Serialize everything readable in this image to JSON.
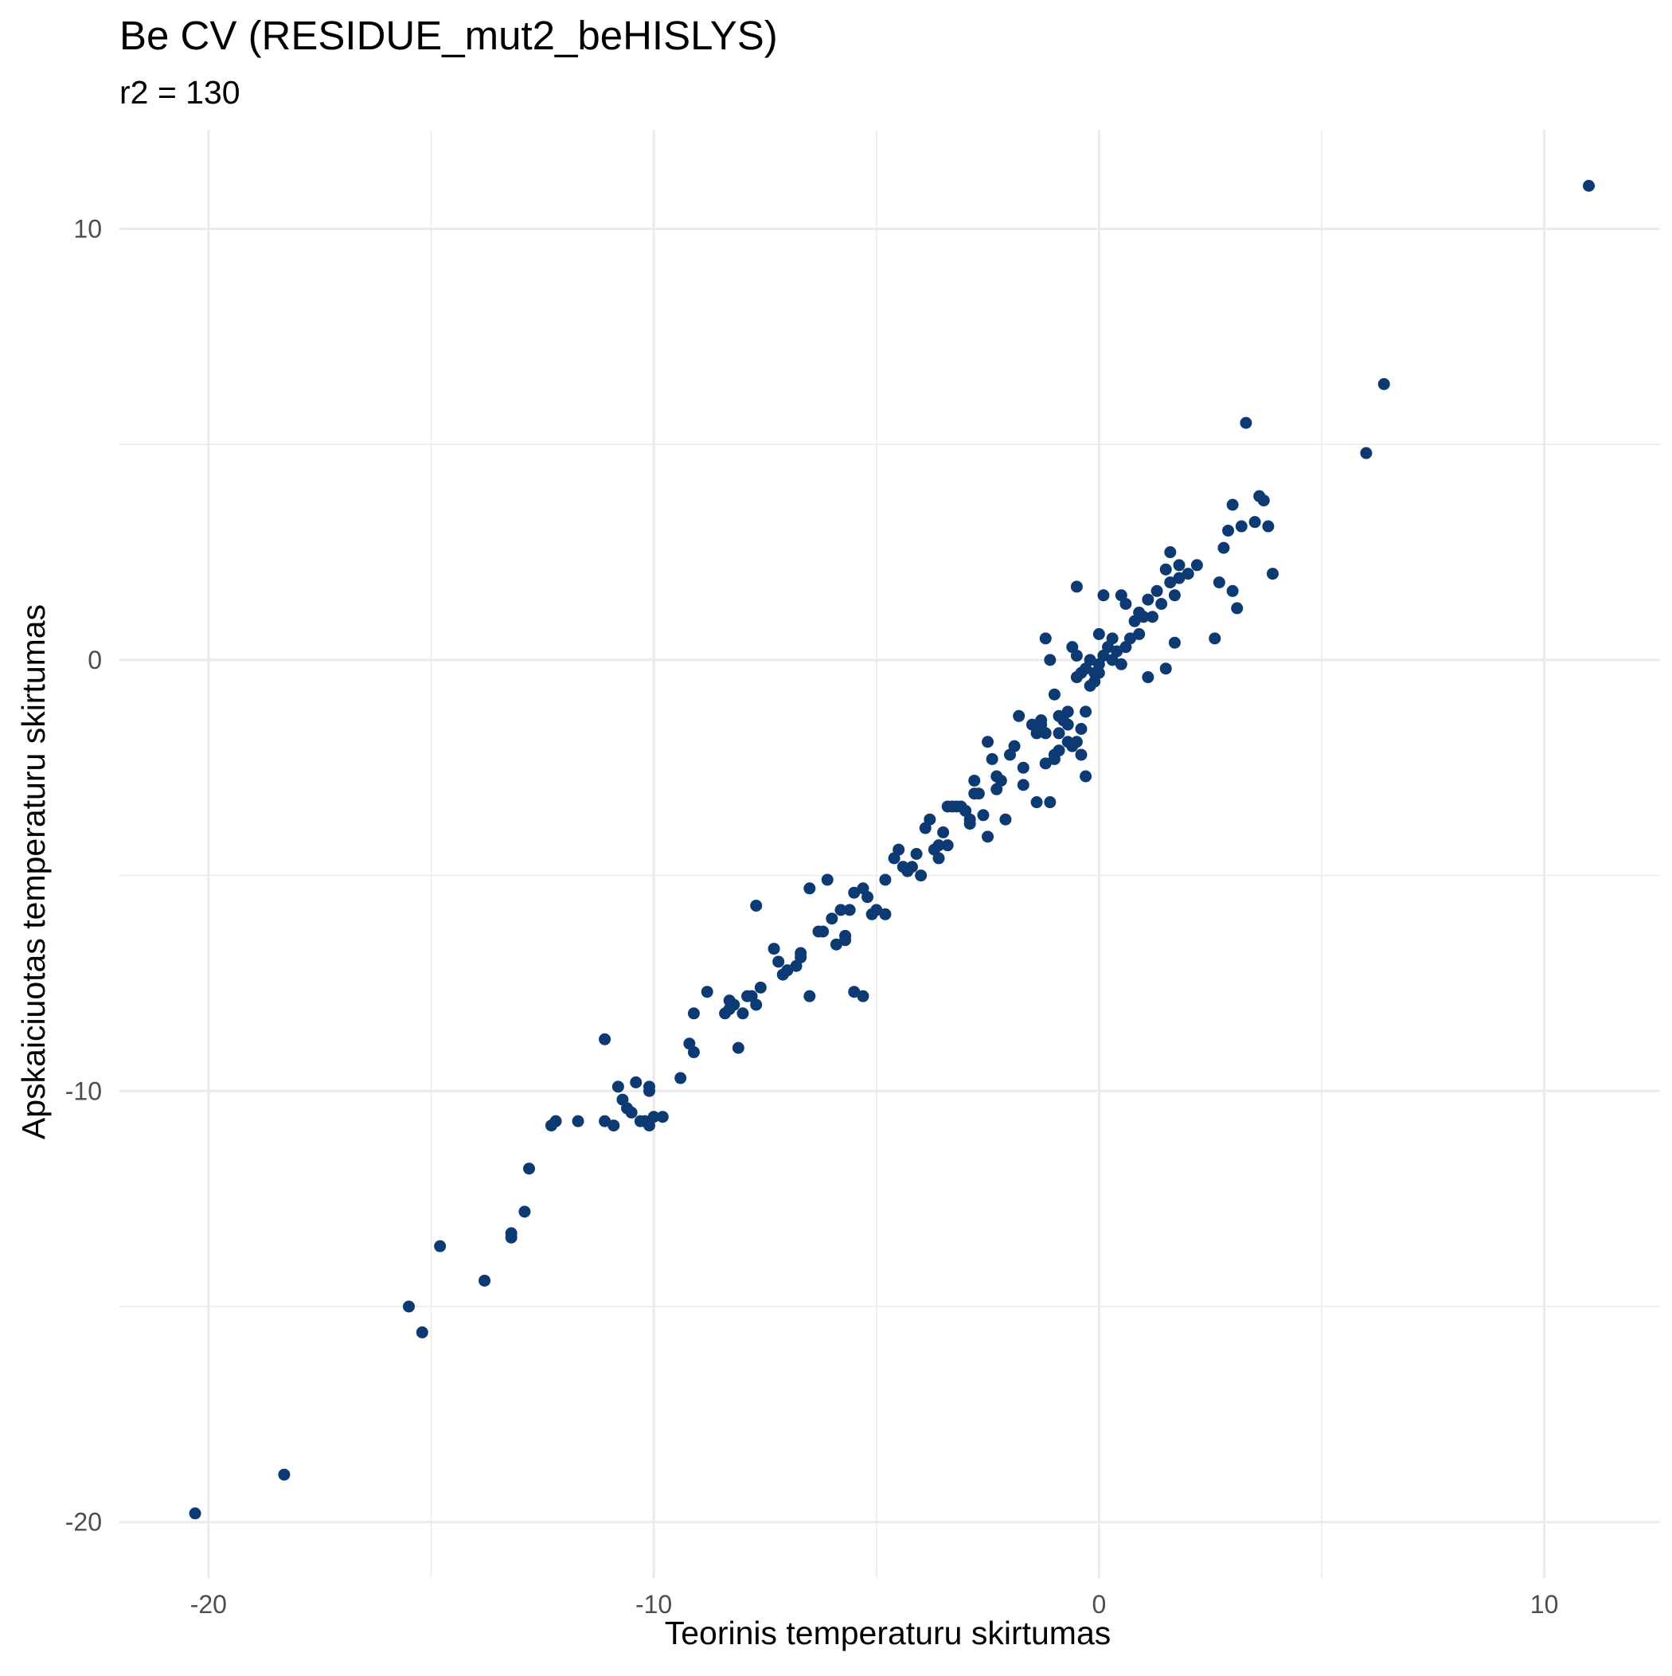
{
  "chart_data": {
    "type": "scatter",
    "title": "Be CV (RESIDUE_mut2_beHISLYS)",
    "subtitle": "r2 = 130",
    "xlabel": "Teorinis temperaturu skirtumas",
    "ylabel": "Apskaiciuotas temperaturu skirtumas",
    "xlim": [
      -22,
      12.6
    ],
    "ylim": [
      -21.3,
      12.3
    ],
    "x_ticks": [
      -20,
      -10,
      0,
      10
    ],
    "y_ticks": [
      -20,
      -10,
      0,
      10
    ],
    "x_tick_labels": [
      "-20",
      "-10",
      "0",
      "10"
    ],
    "y_tick_labels": [
      "-20",
      "-10",
      "0",
      "10"
    ],
    "grid": true,
    "legend": "none",
    "point_color": "#0e3a74",
    "points": [
      [
        -20.3,
        -19.8
      ],
      [
        -18.3,
        -18.9
      ],
      [
        -15.5,
        -15.0
      ],
      [
        -15.2,
        -15.6
      ],
      [
        -14.8,
        -13.6
      ],
      [
        -13.8,
        -14.4
      ],
      [
        -13.2,
        -13.3
      ],
      [
        -13.2,
        -13.4
      ],
      [
        -12.9,
        -12.8
      ],
      [
        -12.8,
        -11.8
      ],
      [
        -12.3,
        -10.8
      ],
      [
        -12.2,
        -10.7
      ],
      [
        -11.7,
        -10.7
      ],
      [
        -11.1,
        -8.8
      ],
      [
        -11.1,
        -10.7
      ],
      [
        -10.9,
        -10.8
      ],
      [
        -10.8,
        -9.9
      ],
      [
        -10.7,
        -10.2
      ],
      [
        -10.6,
        -10.4
      ],
      [
        -10.5,
        -10.5
      ],
      [
        -10.4,
        -9.8
      ],
      [
        -10.3,
        -10.7
      ],
      [
        -10.2,
        -10.7
      ],
      [
        -10.1,
        -10.8
      ],
      [
        -10.1,
        -9.9
      ],
      [
        -10.1,
        -10.0
      ],
      [
        -10.0,
        -10.6
      ],
      [
        -9.8,
        -10.6
      ],
      [
        -9.4,
        -9.7
      ],
      [
        -9.2,
        -8.9
      ],
      [
        -9.1,
        -9.1
      ],
      [
        -9.1,
        -8.2
      ],
      [
        -8.8,
        -7.7
      ],
      [
        -8.4,
        -8.2
      ],
      [
        -8.3,
        -8.1
      ],
      [
        -8.3,
        -7.9
      ],
      [
        -8.2,
        -8.0
      ],
      [
        -8.1,
        -9.0
      ],
      [
        -8.0,
        -8.2
      ],
      [
        -7.9,
        -7.8
      ],
      [
        -7.8,
        -7.8
      ],
      [
        -7.7,
        -8.0
      ],
      [
        -7.7,
        -5.7
      ],
      [
        -7.6,
        -7.6
      ],
      [
        -7.3,
        -6.7
      ],
      [
        -7.2,
        -7.0
      ],
      [
        -7.1,
        -7.3
      ],
      [
        -7.0,
        -7.2
      ],
      [
        -6.8,
        -7.1
      ],
      [
        -6.7,
        -6.8
      ],
      [
        -6.7,
        -6.9
      ],
      [
        -6.5,
        -5.3
      ],
      [
        -6.5,
        -7.8
      ],
      [
        -6.3,
        -6.3
      ],
      [
        -6.2,
        -6.3
      ],
      [
        -6.1,
        -5.1
      ],
      [
        -6.0,
        -6.0
      ],
      [
        -5.9,
        -6.6
      ],
      [
        -5.8,
        -5.8
      ],
      [
        -5.7,
        -6.4
      ],
      [
        -5.7,
        -6.5
      ],
      [
        -5.6,
        -5.8
      ],
      [
        -5.5,
        -5.4
      ],
      [
        -5.5,
        -7.7
      ],
      [
        -5.3,
        -5.3
      ],
      [
        -5.3,
        -7.8
      ],
      [
        -5.2,
        -5.5
      ],
      [
        -5.1,
        -5.9
      ],
      [
        -5.0,
        -5.8
      ],
      [
        -4.8,
        -5.9
      ],
      [
        -4.8,
        -5.1
      ],
      [
        -4.6,
        -4.6
      ],
      [
        -4.4,
        -4.8
      ],
      [
        -4.5,
        -4.4
      ],
      [
        -4.3,
        -4.9
      ],
      [
        -4.2,
        -4.8
      ],
      [
        -4.1,
        -4.5
      ],
      [
        -4.0,
        -5.0
      ],
      [
        -3.9,
        -3.9
      ],
      [
        -3.8,
        -3.7
      ],
      [
        -3.7,
        -4.4
      ],
      [
        -3.6,
        -4.6
      ],
      [
        -3.6,
        -4.3
      ],
      [
        -3.5,
        -4.0
      ],
      [
        -3.4,
        -3.4
      ],
      [
        -3.4,
        -4.3
      ],
      [
        -3.3,
        -3.4
      ],
      [
        -3.2,
        -3.4
      ],
      [
        -3.1,
        -3.4
      ],
      [
        -3.0,
        -3.5
      ],
      [
        -3.0,
        -3.5
      ],
      [
        -2.9,
        -3.7
      ],
      [
        -2.9,
        -3.8
      ],
      [
        -2.8,
        -2.8
      ],
      [
        -2.8,
        -3.1
      ],
      [
        -2.7,
        -3.1
      ],
      [
        -2.6,
        -3.6
      ],
      [
        -2.5,
        -4.1
      ],
      [
        -2.5,
        -1.9
      ],
      [
        -2.4,
        -2.3
      ],
      [
        -2.3,
        -3.0
      ],
      [
        -2.3,
        -2.7
      ],
      [
        -2.2,
        -2.8
      ],
      [
        -2.1,
        -3.7
      ],
      [
        -2.0,
        -2.2
      ],
      [
        -1.9,
        -2.0
      ],
      [
        -1.8,
        -1.3
      ],
      [
        -1.7,
        -2.5
      ],
      [
        -1.7,
        -2.9
      ],
      [
        -1.5,
        -1.5
      ],
      [
        -1.4,
        -3.3
      ],
      [
        -1.4,
        -1.7
      ],
      [
        -1.3,
        -1.5
      ],
      [
        -1.3,
        -1.4
      ],
      [
        -1.2,
        -2.4
      ],
      [
        -1.2,
        -1.7
      ],
      [
        -1.1,
        -3.3
      ],
      [
        -1.0,
        -2.2
      ],
      [
        -1.0,
        -2.3
      ],
      [
        -0.9,
        -1.7
      ],
      [
        -0.9,
        -2.1
      ],
      [
        -0.8,
        -1.4
      ],
      [
        -0.7,
        -1.9
      ],
      [
        -0.7,
        -1.5
      ],
      [
        -0.6,
        -2.0
      ],
      [
        -0.5,
        -1.9
      ],
      [
        -0.4,
        -2.2
      ],
      [
        -0.4,
        -1.6
      ],
      [
        -0.3,
        -2.7
      ],
      [
        -0.3,
        -1.2
      ],
      [
        -0.2,
        -0.6
      ],
      [
        -0.1,
        -0.5
      ],
      [
        -0.1,
        -0.3
      ],
      [
        0.0,
        -0.3
      ],
      [
        -1.2,
        0.5
      ],
      [
        -1.1,
        0.0
      ],
      [
        -1.0,
        -0.8
      ],
      [
        -0.9,
        -1.3
      ],
      [
        -0.7,
        -1.2
      ],
      [
        -0.6,
        0.3
      ],
      [
        -0.5,
        0.1
      ],
      [
        -0.5,
        -0.4
      ],
      [
        -0.4,
        -0.3
      ],
      [
        -0.3,
        -0.2
      ],
      [
        -0.2,
        0.0
      ],
      [
        0.0,
        -0.1
      ],
      [
        0.0,
        0.6
      ],
      [
        0.1,
        0.1
      ],
      [
        0.2,
        0.3
      ],
      [
        0.3,
        0.0
      ],
      [
        0.3,
        0.5
      ],
      [
        0.4,
        0.2
      ],
      [
        0.5,
        -0.1
      ],
      [
        0.6,
        0.3
      ],
      [
        0.7,
        0.5
      ],
      [
        0.8,
        0.9
      ],
      [
        0.9,
        0.6
      ],
      [
        1.0,
        1.0
      ],
      [
        1.1,
        1.4
      ],
      [
        1.2,
        1.0
      ],
      [
        1.3,
        1.6
      ],
      [
        1.4,
        1.3
      ],
      [
        1.5,
        2.1
      ],
      [
        1.6,
        1.8
      ],
      [
        1.7,
        1.5
      ],
      [
        1.8,
        2.2
      ],
      [
        -0.5,
        1.7
      ],
      [
        0.1,
        1.5
      ],
      [
        0.5,
        1.5
      ],
      [
        0.6,
        1.3
      ],
      [
        0.9,
        1.1
      ],
      [
        1.1,
        -0.4
      ],
      [
        1.5,
        -0.2
      ],
      [
        1.6,
        2.5
      ],
      [
        1.7,
        0.4
      ],
      [
        1.8,
        1.9
      ],
      [
        2.0,
        2.0
      ],
      [
        2.2,
        2.2
      ],
      [
        2.6,
        0.5
      ],
      [
        2.7,
        1.8
      ],
      [
        2.8,
        2.6
      ],
      [
        2.9,
        3.0
      ],
      [
        3.0,
        3.6
      ],
      [
        3.0,
        1.6
      ],
      [
        3.1,
        1.2
      ],
      [
        3.2,
        3.1
      ],
      [
        3.3,
        5.5
      ],
      [
        3.5,
        3.2
      ],
      [
        3.6,
        3.8
      ],
      [
        3.7,
        3.7
      ],
      [
        3.8,
        3.1
      ],
      [
        3.9,
        2.0
      ],
      [
        6.0,
        4.8
      ],
      [
        6.4,
        6.4
      ],
      [
        11.0,
        11.0
      ]
    ]
  }
}
